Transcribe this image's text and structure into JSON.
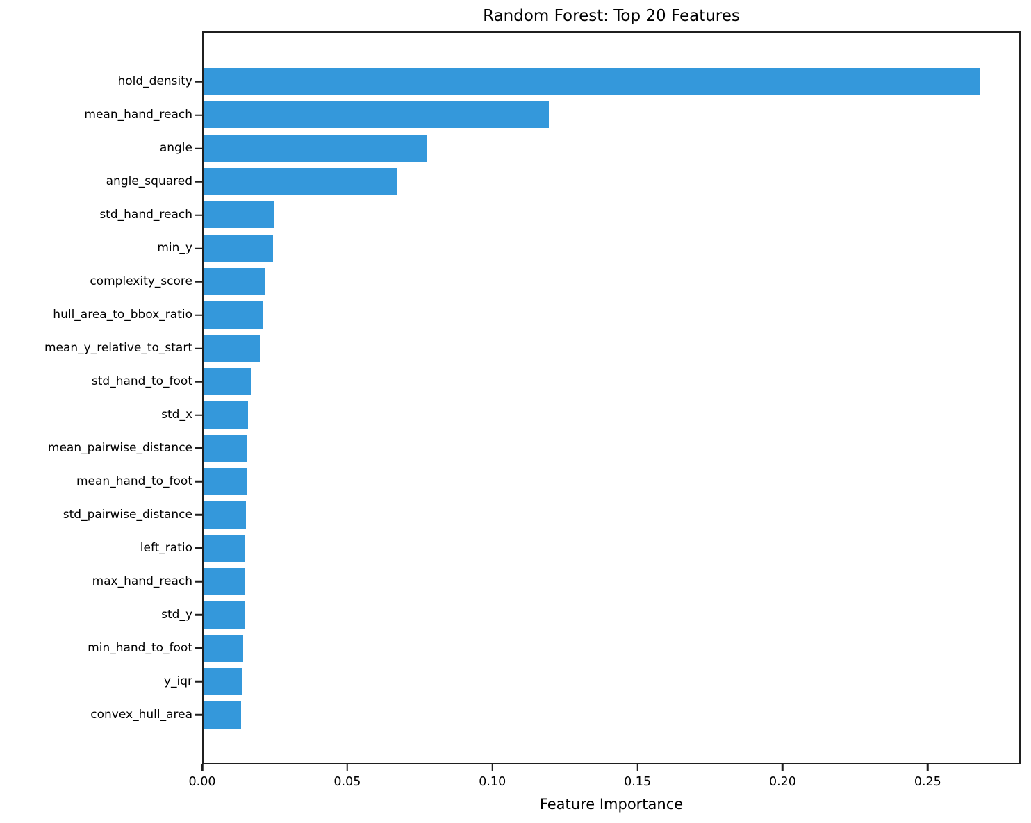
{
  "figure": {
    "background": "#ffffff"
  },
  "chart_data": {
    "type": "bar",
    "orientation": "horizontal",
    "title": "Random Forest: Top 20 Features",
    "xlabel": "Feature Importance",
    "ylabel": "",
    "bar_color": "#3498db",
    "spine_color": "#1f1f1f",
    "grid": false,
    "legend": null,
    "xlim": [
      0,
      0.282
    ],
    "xtick_values": [
      0.0,
      0.05,
      0.1,
      0.15,
      0.2,
      0.25
    ],
    "xtick_labels": [
      "0.00",
      "0.05",
      "0.10",
      "0.15",
      "0.20",
      "0.25"
    ],
    "categories": [
      "hold_density",
      "mean_hand_reach",
      "angle",
      "angle_squared",
      "std_hand_reach",
      "min_y",
      "complexity_score",
      "hull_area_to_bbox_ratio",
      "mean_y_relative_to_start",
      "std_hand_to_foot",
      "std_x",
      "mean_pairwise_distance",
      "mean_hand_to_foot",
      "std_pairwise_distance",
      "left_ratio",
      "max_hand_reach",
      "std_y",
      "min_hand_to_foot",
      "y_iqr",
      "convex_hull_area"
    ],
    "values": [
      0.2684,
      0.1194,
      0.0774,
      0.0667,
      0.0242,
      0.024,
      0.0214,
      0.0203,
      0.0194,
      0.0163,
      0.0154,
      0.0151,
      0.0149,
      0.0146,
      0.0144,
      0.0144,
      0.0142,
      0.0136,
      0.0135,
      0.0129
    ]
  }
}
